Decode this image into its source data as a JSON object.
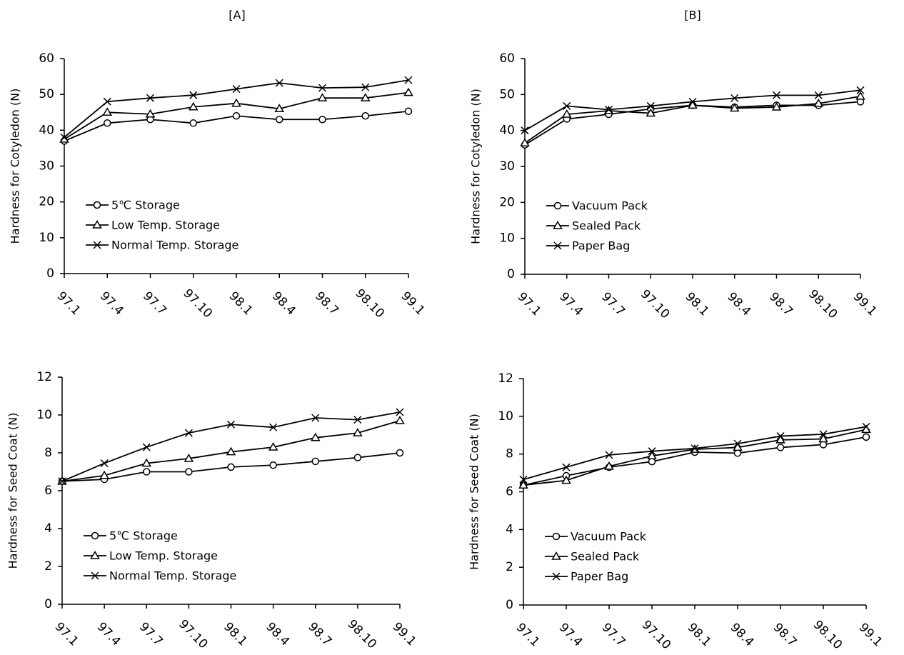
{
  "chart_data": [
    {
      "type": "line",
      "title": "[A]",
      "y_label": "Hardness for Cotyledon (N)",
      "categories": [
        "97.1",
        "97.4",
        "97.7",
        "97.10",
        "98.1",
        "98.4",
        "98.7",
        "98.10",
        "99.1"
      ],
      "ylim": [
        0,
        60
      ],
      "yticks": [
        0,
        10,
        20,
        30,
        40,
        50,
        60
      ],
      "legend": "lower left",
      "series": [
        {
          "name": "5℃ Storage",
          "color": "#000000",
          "marker": "circle",
          "values": [
            37,
            42,
            43,
            42,
            44,
            43,
            43,
            44,
            45.3
          ]
        },
        {
          "name": "Low Temp. Storage",
          "color": "#000000",
          "marker": "triangle",
          "values": [
            37.5,
            45,
            44.5,
            46.5,
            47.5,
            46,
            49,
            49,
            50.5
          ]
        },
        {
          "name": "Normal Temp. Storage",
          "color": "#000000",
          "marker": "x",
          "values": [
            38,
            48,
            49,
            49.8,
            51.5,
            53.2,
            51.8,
            52,
            54
          ]
        }
      ]
    },
    {
      "type": "line",
      "title": "[B]",
      "y_label": "Hardness for Cotyledon (N)",
      "categories": [
        "97.1",
        "97.4",
        "97.7",
        "97.10",
        "98.1",
        "98.4",
        "98.7",
        "98.10",
        "99.1"
      ],
      "ylim": [
        0,
        60
      ],
      "yticks": [
        0,
        10,
        20,
        30,
        40,
        50,
        60
      ],
      "legend": "lower left",
      "series": [
        {
          "name": "Vacuum Pack",
          "color": "#000000",
          "marker": "circle",
          "values": [
            36,
            43.2,
            44.5,
            46,
            47,
            46.5,
            47,
            47,
            48
          ]
        },
        {
          "name": "Sealed Pack",
          "color": "#000000",
          "marker": "triangle",
          "values": [
            36.5,
            44.5,
            45.5,
            44.8,
            47,
            46.2,
            46.5,
            47.5,
            49.5
          ]
        },
        {
          "name": "Paper Bag",
          "color": "#000000",
          "marker": "x",
          "values": [
            40,
            46.8,
            45.8,
            46.8,
            48,
            49,
            49.8,
            49.8,
            51.2
          ]
        }
      ]
    },
    {
      "type": "line",
      "y_label": "Hardness for Seed Coat (N)",
      "categories": [
        "97.1",
        "97.4",
        "97.7",
        "97.10",
        "98.1",
        "98.4",
        "98.7",
        "98.10",
        "99.1"
      ],
      "ylim": [
        0,
        12
      ],
      "yticks": [
        0,
        2,
        4,
        6,
        8,
        10,
        12
      ],
      "legend": "lower left",
      "series": [
        {
          "name": "5℃ Storage",
          "color": "#000000",
          "marker": "circle",
          "values": [
            6.5,
            6.6,
            7.0,
            7.0,
            7.25,
            7.35,
            7.55,
            7.75,
            8.0
          ]
        },
        {
          "name": "Low Temp. Storage",
          "color": "#000000",
          "marker": "triangle",
          "values": [
            6.5,
            6.8,
            7.45,
            7.7,
            8.05,
            8.3,
            8.8,
            9.05,
            9.7
          ]
        },
        {
          "name": "Normal Temp. Storage",
          "color": "#000000",
          "marker": "x",
          "values": [
            6.5,
            7.45,
            8.3,
            9.05,
            9.5,
            9.35,
            9.85,
            9.75,
            10.15
          ]
        }
      ]
    },
    {
      "type": "line",
      "y_label": "Hardness for Seed Coat (N)",
      "categories": [
        "97.1",
        "97.4",
        "97.7",
        "97.10",
        "98.1",
        "98.4",
        "98.7",
        "98.10",
        "99.1"
      ],
      "ylim": [
        0,
        12
      ],
      "yticks": [
        0,
        2,
        4,
        6,
        8,
        10,
        12
      ],
      "legend": "lower left",
      "series": [
        {
          "name": "Vacuum Pack",
          "color": "#000000",
          "marker": "circle",
          "values": [
            6.35,
            6.85,
            7.3,
            7.6,
            8.1,
            8.05,
            8.35,
            8.5,
            8.9
          ]
        },
        {
          "name": "Sealed Pack",
          "color": "#000000",
          "marker": "triangle",
          "values": [
            6.35,
            6.6,
            7.35,
            7.9,
            8.25,
            8.35,
            8.75,
            8.8,
            9.3
          ]
        },
        {
          "name": "Paper Bag",
          "color": "#000000",
          "marker": "x",
          "values": [
            6.65,
            7.3,
            7.95,
            8.15,
            8.3,
            8.55,
            8.95,
            9.05,
            9.45
          ]
        }
      ]
    }
  ]
}
